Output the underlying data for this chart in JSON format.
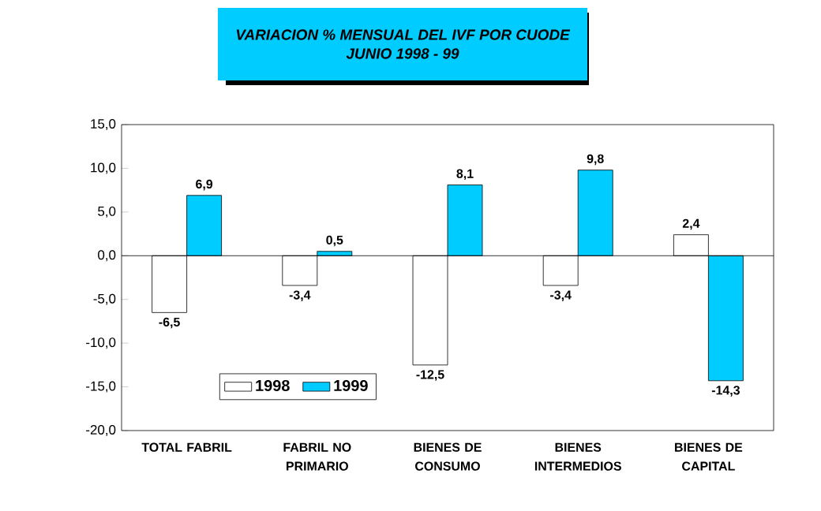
{
  "chart_data": {
    "type": "bar",
    "title": "VARIACION % MENSUAL DEL IVF  POR  CUODE",
    "subtitle": "JUNIO 1998 - 99",
    "categories": [
      "TOTAL FABRIL",
      "FABRIL NO PRIMARIO",
      "BIENES DE CONSUMO",
      "BIENES INTERMEDIOS",
      "BIENES DE CAPITAL"
    ],
    "series": [
      {
        "name": "1998",
        "color": "#ffffff",
        "values": [
          -6.5,
          -3.4,
          -12.5,
          -3.4,
          2.4
        ],
        "value_labels": [
          "-6,5",
          "-3,4",
          "-12,5",
          "-3,4",
          "2,4"
        ]
      },
      {
        "name": "1999",
        "color": "#00ccff",
        "values": [
          6.9,
          0.5,
          8.1,
          9.8,
          -14.3
        ],
        "value_labels": [
          "6,9",
          "0,5",
          "8,1",
          "9,8",
          "-14,3"
        ]
      }
    ],
    "ylim": [
      -20,
      15
    ],
    "yticks": [
      {
        "value": -20,
        "label": "-20,0"
      },
      {
        "value": -15,
        "label": "-15,0"
      },
      {
        "value": -10,
        "label": "-10,0"
      },
      {
        "value": -5,
        "label": "-5,0"
      },
      {
        "value": 0,
        "label": "0,0"
      },
      {
        "value": 5,
        "label": "5,0"
      },
      {
        "value": 10,
        "label": "10,0"
      },
      {
        "value": 15,
        "label": "15,0"
      }
    ],
    "ref_lines": [
      {
        "axis": "y",
        "value": 0
      }
    ],
    "legend": "bottom left",
    "grid": false
  }
}
